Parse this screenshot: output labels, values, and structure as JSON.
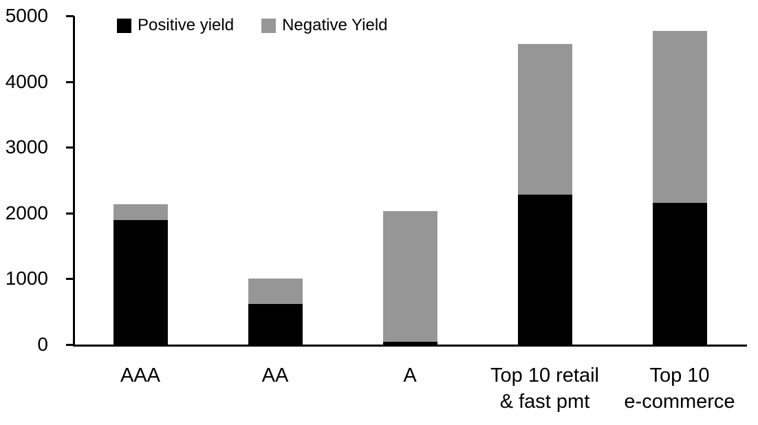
{
  "chart_data": {
    "type": "bar",
    "stacked": true,
    "title": "",
    "xlabel": "",
    "ylabel": "",
    "categories": [
      "AAA",
      "AA",
      "A",
      "Top 10 retail & fast pmt",
      "Top 10 e-commerce"
    ],
    "category_label_lines": [
      [
        "AAA"
      ],
      [
        "AA"
      ],
      [
        "A"
      ],
      [
        "Top 10 retail",
        "& fast pmt"
      ],
      [
        "Top 10",
        "e-commerce"
      ]
    ],
    "series": [
      {
        "name": "Positive yield",
        "color": "#000000",
        "values": [
          1890,
          620,
          40,
          2280,
          2150
        ]
      },
      {
        "name": "Negative Yield",
        "color": "#969696",
        "values": [
          240,
          380,
          1990,
          2290,
          2620
        ]
      }
    ],
    "totals": [
      2130,
      1000,
      2030,
      4570,
      4770
    ],
    "ylim": [
      0,
      5000
    ],
    "yticks": [
      0,
      1000,
      2000,
      3000,
      4000,
      5000
    ],
    "legend_position": "top",
    "grid": false
  },
  "colors": {
    "positive": "#000000",
    "negative": "#969696",
    "axis": "#000000",
    "background": "#ffffff"
  },
  "icons": {
    "positive_swatch": "black-square-icon",
    "negative_swatch": "gray-square-icon"
  }
}
